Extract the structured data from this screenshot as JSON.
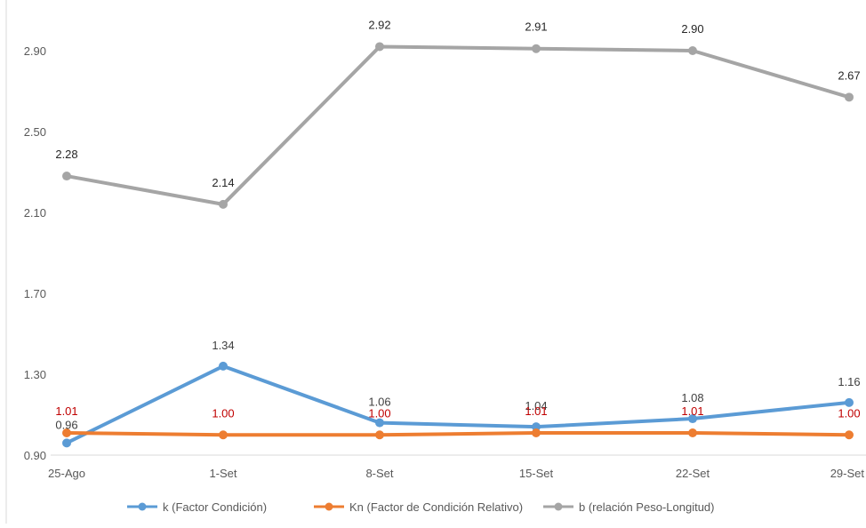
{
  "chart_data": {
    "type": "line",
    "title": "",
    "xlabel": "",
    "ylabel": "",
    "categories": [
      "25-Ago",
      "1-Set",
      "8-Set",
      "15-Set",
      "22-Set",
      "29-Set"
    ],
    "ylim": [
      0.9,
      2.9
    ],
    "yticks": [
      "0.90",
      "1.30",
      "1.70",
      "2.10",
      "2.50",
      "2.90"
    ],
    "grid": false,
    "legend_position": "bottom",
    "series": [
      {
        "name": "k (Factor Condición)",
        "color": "#5B9BD5",
        "label_color": "#404040",
        "values": [
          0.96,
          1.34,
          1.06,
          1.04,
          1.08,
          1.16
        ],
        "labels": [
          "0.96",
          "1.34",
          "1.06",
          "1.04",
          "1.08",
          "1.16"
        ]
      },
      {
        "name": "Kn (Factor de Condición Relativo)",
        "color": "#ED7D31",
        "label_color": "#C00000",
        "values": [
          1.01,
          1.0,
          1.0,
          1.01,
          1.01,
          1.0
        ],
        "labels": [
          "1.01",
          "1.00",
          "1.00",
          "1.01",
          "1.01",
          "1.00"
        ]
      },
      {
        "name": "b (relación Peso-Longitud)",
        "color": "#A5A5A5",
        "label_color": "#262626",
        "values": [
          2.28,
          2.14,
          2.92,
          2.91,
          2.9,
          2.67
        ],
        "labels": [
          "2.28",
          "2.14",
          "2.92",
          "2.91",
          "2.90",
          "2.67"
        ]
      }
    ]
  }
}
